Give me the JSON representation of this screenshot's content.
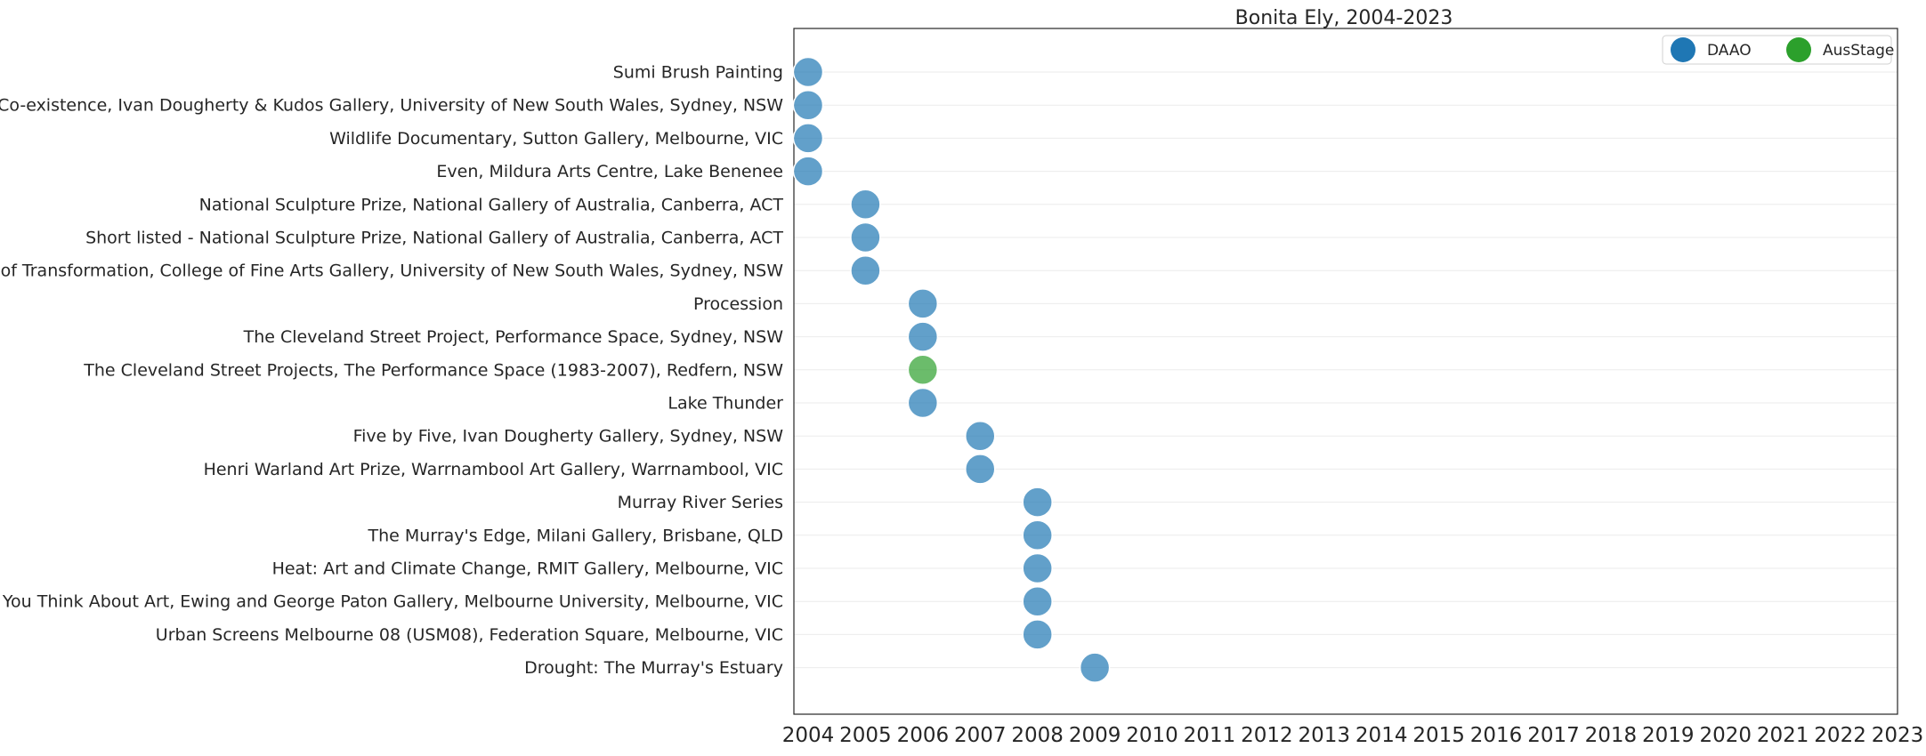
{
  "chart_data": {
    "type": "scatter",
    "title": "Bonita Ely, 2004-2023",
    "xlabel": "",
    "ylabel": "",
    "xlim": [
      2004,
      2023
    ],
    "x_ticks": [
      2004,
      2005,
      2006,
      2007,
      2008,
      2009,
      2010,
      2011,
      2012,
      2013,
      2014,
      2015,
      2016,
      2017,
      2018,
      2019,
      2020,
      2021,
      2022,
      2023
    ],
    "grid": "horizontal",
    "legend": {
      "placement": "top-right",
      "entries": [
        {
          "name": "DAAO",
          "color": "#1f77b4"
        },
        {
          "name": "AusStage",
          "color": "#2ca02c"
        }
      ]
    },
    "categories": [
      "Sumi Brush Painting",
      "Co-existence, Ivan Dougherty & Kudos Gallery, University of New South Wales, Sydney, NSW",
      "Wildlife Documentary, Sutton Gallery, Melbourne, VIC",
      "Even, Mildura Arts Centre, Lake Benenee",
      "National Sculpture Prize, National Gallery of Australia, Canberra, ACT",
      "Short listed - National Sculpture Prize, National Gallery of Australia, Canberra, ACT",
      "States of Transformation, College of Fine Arts Gallery, University of New South Wales, Sydney, NSW",
      "Procession",
      "The Cleveland Street Project, Performance Space, Sydney, NSW",
      "The Cleveland Street Projects, The Performance Space (1983-2007), Redfern, NSW",
      "Lake Thunder",
      "Five by Five, Ivan Dougherty Gallery, Sydney, NSW",
      "Henri Warland Art Prize, Warrnambool Art Gallery, Warrnambool, VIC",
      "Murray River Series",
      "The Murray's Edge, Milani Gallery, Brisbane, QLD",
      "Heat: Art and Climate Change, RMIT Gallery, Melbourne, VIC",
      "When You Think About Art, Ewing and George Paton Gallery, Melbourne University, Melbourne, VIC",
      "Urban Screens Melbourne 08 (USM08), Federation Square, Melbourne, VIC",
      "Drought: The Murray's Estuary"
    ],
    "points": [
      {
        "category": "Sumi Brush Painting",
        "x": 2004,
        "source": "DAAO"
      },
      {
        "category": "Co-existence, Ivan Dougherty & Kudos Gallery, University of New South Wales, Sydney, NSW",
        "x": 2004,
        "source": "DAAO"
      },
      {
        "category": "Wildlife Documentary, Sutton Gallery, Melbourne, VIC",
        "x": 2004,
        "source": "DAAO"
      },
      {
        "category": "Even, Mildura Arts Centre, Lake Benenee",
        "x": 2004,
        "source": "DAAO"
      },
      {
        "category": "National Sculpture Prize, National Gallery of Australia, Canberra, ACT",
        "x": 2005,
        "source": "DAAO"
      },
      {
        "category": "Short listed - National Sculpture Prize, National Gallery of Australia, Canberra, ACT",
        "x": 2005,
        "source": "DAAO"
      },
      {
        "category": "States of Transformation, College of Fine Arts Gallery, University of New South Wales, Sydney, NSW",
        "x": 2005,
        "source": "DAAO"
      },
      {
        "category": "Procession",
        "x": 2006,
        "source": "DAAO"
      },
      {
        "category": "The Cleveland Street Project, Performance Space, Sydney, NSW",
        "x": 2006,
        "source": "DAAO"
      },
      {
        "category": "The Cleveland Street Projects, The Performance Space (1983-2007), Redfern, NSW",
        "x": 2006,
        "source": "AusStage"
      },
      {
        "category": "Lake Thunder",
        "x": 2006,
        "source": "DAAO"
      },
      {
        "category": "Five by Five, Ivan Dougherty Gallery, Sydney, NSW",
        "x": 2007,
        "source": "DAAO"
      },
      {
        "category": "Henri Warland Art Prize, Warrnambool Art Gallery, Warrnambool, VIC",
        "x": 2007,
        "source": "DAAO"
      },
      {
        "category": "Murray River Series",
        "x": 2008,
        "source": "DAAO"
      },
      {
        "category": "The Murray's Edge, Milani Gallery, Brisbane, QLD",
        "x": 2008,
        "source": "DAAO"
      },
      {
        "category": "Heat: Art and Climate Change, RMIT Gallery, Melbourne, VIC",
        "x": 2008,
        "source": "DAAO"
      },
      {
        "category": "When You Think About Art, Ewing and George Paton Gallery, Melbourne University, Melbourne, VIC",
        "x": 2008,
        "source": "DAAO"
      },
      {
        "category": "Urban Screens Melbourne 08 (USM08), Federation Square, Melbourne, VIC",
        "x": 2008,
        "source": "DAAO"
      },
      {
        "category": "Drought: The Murray's Estuary",
        "x": 2009,
        "source": "DAAO"
      }
    ]
  }
}
